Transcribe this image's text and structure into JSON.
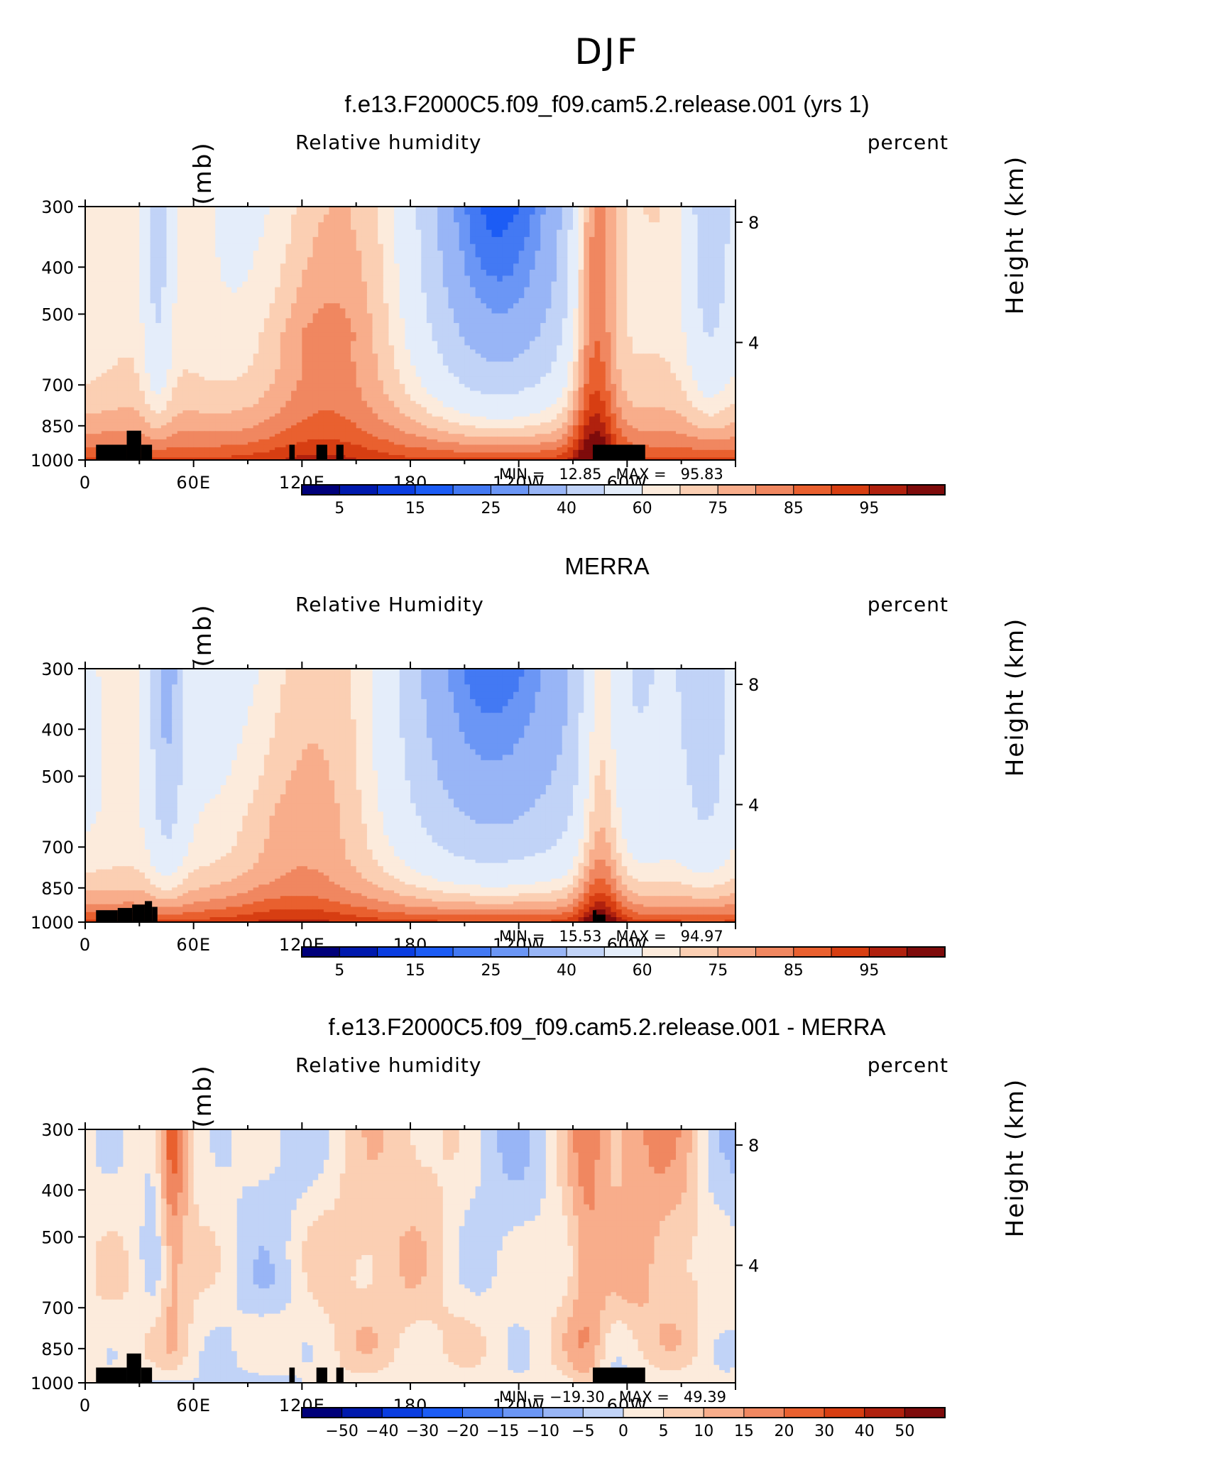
{
  "main_title": "DJF",
  "colors": {
    "frame": "#000000",
    "terrain": "#000000"
  },
  "panels": [
    {
      "title": "f.e13.F2000C5.f09_f09.cam5.2.release.001 (yrs 1)",
      "left_label": "Relative humidity",
      "right_label": "percent",
      "ylabel": "Pressure (mb)",
      "right_axis_label": "Height (km)",
      "minmax": "MIN =   12.85   MAX =   95.83",
      "colorbar_labels": [
        "5",
        "15",
        "25",
        "40",
        "60",
        "75",
        "85",
        "95"
      ]
    },
    {
      "title": "MERRA",
      "left_label": "Relative Humidity",
      "right_label": "percent",
      "ylabel": "Pressure (mb)",
      "right_axis_label": "Height (km)",
      "minmax": "MIN =   15.53   MAX =   94.97",
      "colorbar_labels": [
        "5",
        "15",
        "25",
        "40",
        "60",
        "75",
        "85",
        "95"
      ]
    },
    {
      "title": "f.e13.F2000C5.f09_f09.cam5.2.release.001 - MERRA",
      "left_label": "Relative humidity",
      "right_label": "percent",
      "ylabel": "Pressure (mb)",
      "right_axis_label": "Height (km)",
      "minmax": "MIN = −19.30   MAX =   49.39",
      "colorbar_labels": [
        "−50",
        "−40",
        "−30",
        "−20",
        "−15",
        "−10",
        "−5",
        "0",
        "5",
        "10",
        "15",
        "20",
        "30",
        "40",
        "50"
      ]
    }
  ],
  "chart_data": [
    {
      "type": "heatmap",
      "title": "f.e13.F2000C5.f09_f09.cam5.2.release.001 (yrs 1)",
      "subtitle": "Relative humidity",
      "units": "percent",
      "ylabel": "Pressure (mb)",
      "y2label": "Height (km)",
      "x_ticks": [
        "0",
        "60E",
        "120E",
        "180",
        "120W",
        "60W"
      ],
      "y_ticks": [
        "300",
        "400",
        "500",
        "700",
        "850",
        "1000"
      ],
      "y2_ticks": [
        "8",
        "4"
      ],
      "min": 12.85,
      "max": 95.83,
      "levels": [
        5,
        10,
        15,
        20,
        25,
        30,
        40,
        50,
        60,
        65,
        70,
        75,
        80,
        85,
        90,
        95
      ],
      "palette": [
        "#00007a",
        "#0019ad",
        "#0a3de0",
        "#1c5cf5",
        "#4379f3",
        "#6b96f5",
        "#98b5f6",
        "#c1d3f7",
        "#e4edfa",
        "#fcebdc",
        "#fbcfb3",
        "#f8ad8b",
        "#f08760",
        "#e9602f",
        "#d73e12",
        "#b0210e",
        "#7e0b0b"
      ]
    },
    {
      "type": "heatmap",
      "title": "MERRA",
      "subtitle": "Relative Humidity",
      "units": "percent",
      "ylabel": "Pressure (mb)",
      "y2label": "Height (km)",
      "x_ticks": [
        "0",
        "60E",
        "120E",
        "180",
        "120W",
        "60W"
      ],
      "y_ticks": [
        "300",
        "400",
        "500",
        "700",
        "850",
        "1000"
      ],
      "y2_ticks": [
        "8",
        "4"
      ],
      "min": 15.53,
      "max": 94.97,
      "levels": [
        5,
        10,
        15,
        20,
        25,
        30,
        40,
        50,
        60,
        65,
        70,
        75,
        80,
        85,
        90,
        95
      ],
      "palette": [
        "#00007a",
        "#0019ad",
        "#0a3de0",
        "#1c5cf5",
        "#4379f3",
        "#6b96f5",
        "#98b5f6",
        "#c1d3f7",
        "#e4edfa",
        "#fcebdc",
        "#fbcfb3",
        "#f8ad8b",
        "#f08760",
        "#e9602f",
        "#d73e12",
        "#b0210e",
        "#7e0b0b"
      ]
    },
    {
      "type": "heatmap",
      "title": "f.e13.F2000C5.f09_f09.cam5.2.release.001 - MERRA",
      "subtitle": "Relative humidity",
      "units": "percent",
      "ylabel": "Pressure (mb)",
      "y2label": "Height (km)",
      "x_ticks": [
        "0",
        "60E",
        "120E",
        "180",
        "120W",
        "60W"
      ],
      "y_ticks": [
        "300",
        "400",
        "500",
        "700",
        "850",
        "1000"
      ],
      "y2_ticks": [
        "8",
        "4"
      ],
      "min": -19.3,
      "max": 49.39,
      "levels": [
        -50,
        -40,
        -30,
        -20,
        -15,
        -10,
        -5,
        0,
        5,
        10,
        15,
        20,
        30,
        40,
        50
      ],
      "palette": [
        "#00007a",
        "#0019ad",
        "#0a3de0",
        "#1c5cf5",
        "#4379f3",
        "#6b96f5",
        "#98b5f6",
        "#c1d3f7",
        "#fcebdc",
        "#fbcfb3",
        "#f8ad8b",
        "#f08760",
        "#e9602f",
        "#d73e12",
        "#b0210e",
        "#7e0b0b"
      ]
    }
  ]
}
